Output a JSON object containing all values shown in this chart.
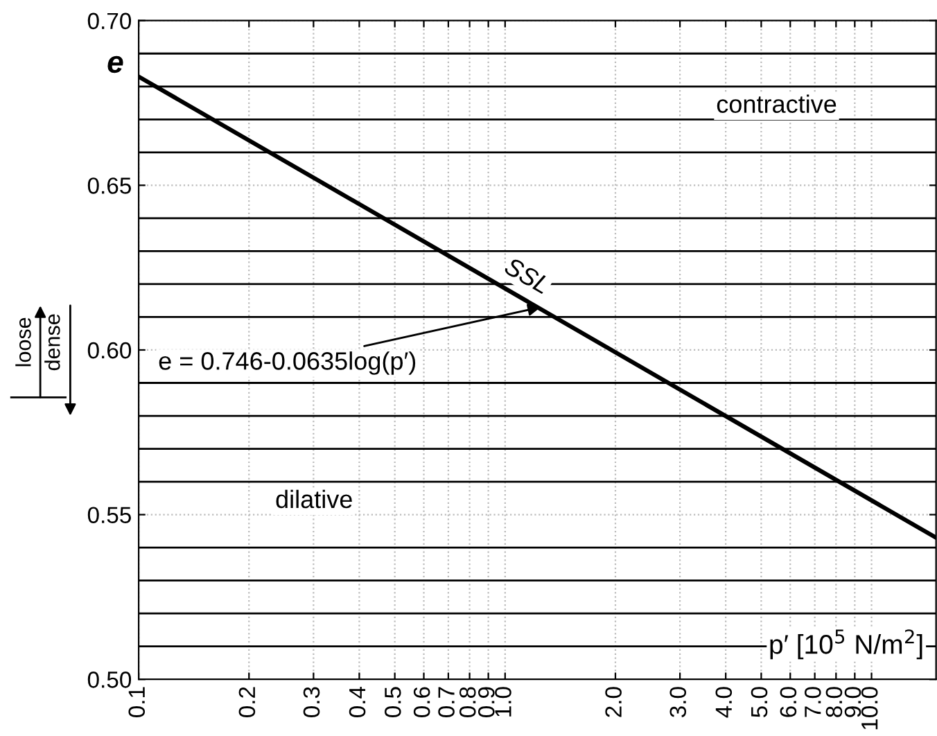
{
  "chart_data": {
    "type": "line",
    "xlabel": "p′ [10$^{5}$ N/m$^{2}$]",
    "ylabel": "e",
    "log": "x",
    "x": [
      0.1,
      15
    ],
    "series": [
      {
        "name": "SSL",
        "color": "#000000",
        "values": [
          0.683,
          0.543
        ]
      }
    ],
    "xlim": [
      0.1,
      15
    ],
    "ylim": [
      0.5,
      0.7
    ],
    "xticks": [
      {
        "value": 0.1,
        "label": "0.1"
      },
      {
        "value": 0.2,
        "label": "0.2"
      },
      {
        "value": 0.3,
        "label": "0.3"
      },
      {
        "value": 0.4,
        "label": "0.4"
      },
      {
        "value": 0.5,
        "label": "0.5"
      },
      {
        "value": 0.6,
        "label": "0.6"
      },
      {
        "value": 0.7,
        "label": "0.7"
      },
      {
        "value": 0.8,
        "label": "0.8"
      },
      {
        "value": 0.9,
        "label": "0.9"
      },
      {
        "value": 1.0,
        "label": "1.0"
      },
      {
        "value": 2.0,
        "label": "2.0"
      },
      {
        "value": 3.0,
        "label": "3.0"
      },
      {
        "value": 4.0,
        "label": "4.0"
      },
      {
        "value": 5.0,
        "label": "5.0"
      },
      {
        "value": 6.0,
        "label": "6.0"
      },
      {
        "value": 7.0,
        "label": "7.0"
      },
      {
        "value": 8.0,
        "label": "8.0"
      },
      {
        "value": 9.0,
        "label": "9.0"
      },
      {
        "value": 10.0,
        "label": "10.0"
      }
    ],
    "yticks": [
      {
        "value": 0.5,
        "label": "0.50"
      },
      {
        "value": 0.55,
        "label": "0.55"
      },
      {
        "value": 0.6,
        "label": "0.60"
      },
      {
        "value": 0.65,
        "label": "0.65"
      },
      {
        "value": 0.7,
        "label": "0.70"
      }
    ],
    "grid": true,
    "line_style": "solid",
    "marker": "none",
    "ref_lines": [
      {
        "axis": "y",
        "value": 0.51,
        "color": "#000000"
      },
      {
        "axis": "y",
        "value": 0.52,
        "color": "#000000"
      },
      {
        "axis": "y",
        "value": 0.53,
        "color": "#000000"
      },
      {
        "axis": "y",
        "value": 0.54,
        "color": "#000000"
      },
      {
        "axis": "y",
        "value": 0.56,
        "color": "#000000"
      },
      {
        "axis": "y",
        "value": 0.57,
        "color": "#000000"
      },
      {
        "axis": "y",
        "value": 0.58,
        "color": "#000000"
      },
      {
        "axis": "y",
        "value": 0.59,
        "color": "#000000"
      },
      {
        "axis": "y",
        "value": 0.61,
        "color": "#000000"
      },
      {
        "axis": "y",
        "value": 0.62,
        "color": "#000000"
      },
      {
        "axis": "y",
        "value": 0.63,
        "color": "#000000"
      },
      {
        "axis": "y",
        "value": 0.64,
        "color": "#000000"
      },
      {
        "axis": "y",
        "value": 0.66,
        "color": "#000000"
      },
      {
        "axis": "y",
        "value": 0.67,
        "color": "#000000"
      },
      {
        "axis": "y",
        "value": 0.68,
        "color": "#000000"
      },
      {
        "axis": "y",
        "value": 0.69,
        "color": "#000000"
      }
    ],
    "annotations": [
      {
        "text": "e = 0.746-0.0635log(p′)",
        "x": 1.25,
        "y": 0.613
      },
      "contractive",
      "dilative",
      "loose",
      "dense"
    ]
  }
}
